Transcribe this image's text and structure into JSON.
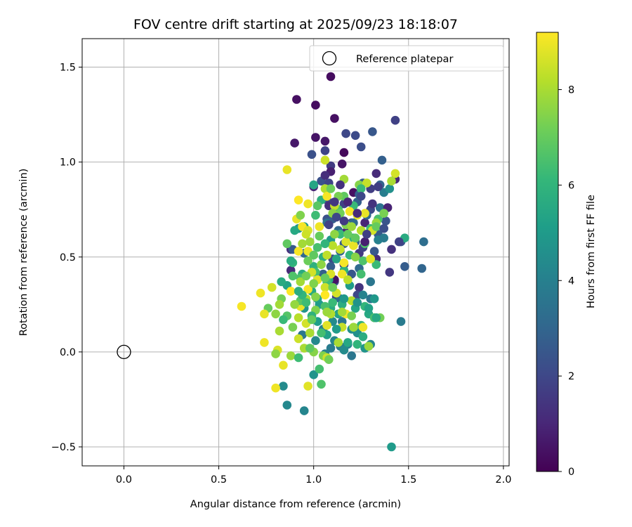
{
  "chart_data": {
    "type": "scatter",
    "title": "FOV centre drift starting at 2025/09/23 18:18:07",
    "xlabel": "Angular distance from reference (arcmin)",
    "ylabel": "Rotation from reference (arcmin)",
    "xlim": [
      -0.22,
      2.03
    ],
    "ylim": [
      -0.6,
      1.65
    ],
    "xticks": [
      0.0,
      0.5,
      1.0,
      1.5,
      2.0
    ],
    "xtick_labels": [
      "0.0",
      "0.5",
      "1.0",
      "1.5",
      "2.0"
    ],
    "yticks": [
      -0.5,
      0.0,
      0.5,
      1.0,
      1.5
    ],
    "ytick_labels": [
      "−0.5",
      "0.0",
      "0.5",
      "1.0",
      "1.5"
    ],
    "grid": true,
    "legend": {
      "position": "top-right",
      "entries": [
        "Reference platepar"
      ]
    },
    "reference_point": {
      "x": 0.0,
      "y": 0.0,
      "label": "Reference platepar"
    },
    "colorbar": {
      "label": "Hours from first FF file",
      "range": [
        0,
        9.2
      ],
      "ticks": [
        0,
        2,
        4,
        6,
        8
      ],
      "tick_labels": [
        "0",
        "2",
        "4",
        "6",
        "8"
      ],
      "colormap": "viridis"
    },
    "colormap_stops": [
      "#440154",
      "#482878",
      "#3e4989",
      "#31688e",
      "#26828e",
      "#1f9e89",
      "#35b779",
      "#6ece58",
      "#b5de2b",
      "#fde725"
    ],
    "points": [
      [
        1.09,
        1.45,
        0.3
      ],
      [
        0.91,
        1.33,
        0.4
      ],
      [
        1.01,
        1.3,
        0.3
      ],
      [
        1.11,
        1.23,
        0.4
      ],
      [
        1.43,
        1.22,
        1.8
      ],
      [
        1.17,
        1.15,
        2.0
      ],
      [
        1.22,
        1.14,
        2.1
      ],
      [
        1.31,
        1.16,
        2.5
      ],
      [
        1.01,
        1.13,
        0.5
      ],
      [
        1.06,
        1.11,
        0.6
      ],
      [
        0.9,
        1.1,
        0.6
      ],
      [
        1.25,
        1.08,
        2.2
      ],
      [
        1.06,
        1.06,
        1.9
      ],
      [
        1.16,
        1.05,
        0.2
      ],
      [
        0.99,
        1.04,
        2.3
      ],
      [
        1.36,
        1.01,
        2.8
      ],
      [
        1.15,
        0.99,
        0.5
      ],
      [
        1.09,
        0.98,
        1.6
      ],
      [
        1.09,
        0.95,
        0.8
      ],
      [
        1.33,
        0.94,
        1.1
      ],
      [
        1.43,
        0.91,
        1.0
      ],
      [
        1.04,
        0.9,
        2.3
      ],
      [
        1.26,
        0.89,
        2.7
      ],
      [
        1.35,
        0.88,
        2.9
      ],
      [
        1.21,
        0.84,
        0.4
      ],
      [
        1.37,
        0.84,
        3.9
      ],
      [
        1.07,
        0.8,
        2.2
      ],
      [
        1.16,
        0.78,
        1.8
      ],
      [
        1.3,
        0.75,
        2.0
      ],
      [
        1.35,
        0.76,
        3.5
      ],
      [
        1.39,
        0.76,
        0.9
      ],
      [
        1.38,
        0.69,
        2.4
      ],
      [
        1.2,
        0.68,
        2.1
      ],
      [
        1.27,
        0.68,
        1.0
      ],
      [
        0.95,
        0.66,
        5.0
      ],
      [
        0.92,
        0.65,
        4.8
      ],
      [
        1.17,
        0.63,
        0.9
      ],
      [
        1.41,
        0.54,
        1.3
      ],
      [
        1.46,
        0.58,
        2.3
      ],
      [
        1.48,
        0.45,
        2.7
      ],
      [
        1.57,
        0.44,
        3.0
      ],
      [
        1.58,
        0.58,
        3.3
      ],
      [
        1.48,
        0.6,
        5.6
      ],
      [
        1.46,
        0.16,
        3.8
      ],
      [
        1.32,
        0.18,
        3.2
      ],
      [
        1.4,
        0.42,
        1.5
      ],
      [
        1.24,
        0.34,
        1.4
      ],
      [
        0.88,
        0.43,
        1.1
      ],
      [
        0.88,
        0.54,
        1.2
      ],
      [
        1.1,
        0.49,
        2.0
      ],
      [
        1.16,
        0.46,
        1.3
      ],
      [
        1.24,
        0.52,
        1.5
      ],
      [
        1.11,
        0.37,
        2.4
      ],
      [
        1.23,
        0.3,
        2.0
      ],
      [
        1.12,
        0.29,
        1.7
      ],
      [
        1.3,
        0.28,
        3.5
      ],
      [
        1.33,
        0.49,
        1.1
      ],
      [
        1.2,
        0.41,
        2.5
      ],
      [
        1.05,
        0.41,
        2.8
      ],
      [
        1.11,
        0.38,
        0.5
      ],
      [
        1.0,
        0.87,
        1.0
      ],
      [
        1.32,
        0.53,
        2.5
      ],
      [
        1.22,
        0.58,
        3.0
      ],
      [
        0.89,
        0.54,
        2.6
      ],
      [
        0.95,
        0.52,
        3.1
      ],
      [
        1.26,
        0.55,
        1.8
      ],
      [
        1.08,
        0.89,
        1.9
      ],
      [
        1.08,
        0.77,
        1.2
      ],
      [
        1.3,
        0.86,
        1.7
      ],
      [
        1.4,
        0.86,
        4.6
      ],
      [
        1.3,
        0.37,
        3.6
      ],
      [
        1.09,
        0.45,
        2.7
      ],
      [
        1.34,
        0.62,
        2.6
      ],
      [
        1.24,
        0.83,
        2.8
      ],
      [
        1.07,
        0.7,
        2.3
      ],
      [
        1.23,
        0.79,
        2.8
      ],
      [
        1.16,
        0.57,
        2.6
      ],
      [
        1.21,
        0.68,
        3.2
      ],
      [
        1.13,
        0.64,
        3.1
      ],
      [
        1.1,
        0.7,
        2.7
      ],
      [
        1.24,
        0.44,
        3.2
      ],
      [
        1.07,
        0.68,
        3.4
      ],
      [
        1.14,
        0.53,
        3.0
      ],
      [
        1.15,
        0.16,
        3.6
      ],
      [
        1.28,
        0.72,
        3.1
      ],
      [
        1.34,
        0.59,
        4.0
      ],
      [
        1.26,
        0.3,
        4.1
      ],
      [
        1.14,
        0.28,
        3.3
      ],
      [
        0.94,
        0.09,
        3.6
      ],
      [
        0.86,
        -0.28,
        4.3
      ],
      [
        0.95,
        -0.31,
        4.2
      ],
      [
        0.84,
        -0.18,
        4.4
      ],
      [
        1.0,
        -0.12,
        4.7
      ],
      [
        1.41,
        -0.5,
        5.0
      ],
      [
        1.09,
        0.02,
        3.8
      ],
      [
        1.11,
        0.06,
        4.2
      ],
      [
        1.14,
        0.03,
        3.9
      ],
      [
        1.2,
        -0.02,
        3.6
      ],
      [
        1.18,
        0.04,
        4.0
      ],
      [
        1.05,
        0.12,
        4.1
      ],
      [
        1.23,
        0.1,
        4.6
      ],
      [
        1.01,
        0.06,
        4.3
      ],
      [
        1.1,
        0.16,
        4.4
      ],
      [
        1.3,
        0.04,
        4.2
      ],
      [
        1.27,
        0.02,
        4.7
      ],
      [
        1.2,
        0.12,
        4.5
      ],
      [
        1.06,
        -0.01,
        4.0
      ],
      [
        1.16,
        0.01,
        4.4
      ],
      [
        1.02,
        0.16,
        5.1
      ],
      [
        1.13,
        0.2,
        5.3
      ],
      [
        1.07,
        0.09,
        5.2
      ],
      [
        1.03,
        0.25,
        5.0
      ],
      [
        1.22,
        0.23,
        5.4
      ],
      [
        1.29,
        0.2,
        5.5
      ],
      [
        0.95,
        0.23,
        4.8
      ],
      [
        1.09,
        0.23,
        5.6
      ],
      [
        1.15,
        0.25,
        5.7
      ],
      [
        1.02,
        0.28,
        5.2
      ],
      [
        1.25,
        0.14,
        5.9
      ],
      [
        1.32,
        0.18,
        6.5
      ],
      [
        1.29,
        0.03,
        6.7
      ],
      [
        1.27,
        0.24,
        6.1
      ],
      [
        0.99,
        0.32,
        5.6
      ],
      [
        1.08,
        0.38,
        5.5
      ],
      [
        1.19,
        0.35,
        5.0
      ],
      [
        1.0,
        0.45,
        5.9
      ],
      [
        1.05,
        0.5,
        5.8
      ],
      [
        1.12,
        0.49,
        5.4
      ],
      [
        0.89,
        0.47,
        6.0
      ],
      [
        0.94,
        0.41,
        5.6
      ],
      [
        0.86,
        0.35,
        5.3
      ],
      [
        0.93,
        0.39,
        6.5
      ],
      [
        1.01,
        0.42,
        6.4
      ],
      [
        1.07,
        0.37,
        6.3
      ],
      [
        1.16,
        0.43,
        5.9
      ],
      [
        1.19,
        0.51,
        6.1
      ],
      [
        1.26,
        0.48,
        6.6
      ],
      [
        1.33,
        0.46,
        6.2
      ],
      [
        1.27,
        0.57,
        6.6
      ],
      [
        1.02,
        0.55,
        6.5
      ],
      [
        0.9,
        0.64,
        5.5
      ],
      [
        1.09,
        0.59,
        5.0
      ],
      [
        1.14,
        0.62,
        6.2
      ],
      [
        1.21,
        0.6,
        5.8
      ],
      [
        1.3,
        0.65,
        6.3
      ],
      [
        1.34,
        0.7,
        6.5
      ],
      [
        1.01,
        0.72,
        6.3
      ],
      [
        1.13,
        0.75,
        6.5
      ],
      [
        1.21,
        0.77,
        6.2
      ],
      [
        1.04,
        0.8,
        5.8
      ],
      [
        1.16,
        0.82,
        6.9
      ],
      [
        1.24,
        0.88,
        7.5
      ],
      [
        1.28,
        0.89,
        8.4
      ],
      [
        1.16,
        0.91,
        7.9
      ],
      [
        1.06,
        0.86,
        8.1
      ],
      [
        1.06,
        1.01,
        8.5
      ],
      [
        0.86,
        0.96,
        8.9
      ],
      [
        1.43,
        0.94,
        8.6
      ],
      [
        1.41,
        0.9,
        8.0
      ],
      [
        1.0,
        0.88,
        5.4
      ],
      [
        0.92,
        0.8,
        9.2
      ],
      [
        1.07,
        0.82,
        9.1
      ],
      [
        0.97,
        0.78,
        9.0
      ],
      [
        1.11,
        0.77,
        8.4
      ],
      [
        1.19,
        0.74,
        9.1
      ],
      [
        1.23,
        0.72,
        8.8
      ],
      [
        1.27,
        0.73,
        8.9
      ],
      [
        1.17,
        0.67,
        7.4
      ],
      [
        1.33,
        0.68,
        7.8
      ],
      [
        1.25,
        0.64,
        8.2
      ],
      [
        1.31,
        0.64,
        8.6
      ],
      [
        1.03,
        0.66,
        9.0
      ],
      [
        0.94,
        0.66,
        9.1
      ],
      [
        0.97,
        0.64,
        8.7
      ],
      [
        0.91,
        0.7,
        8.9
      ],
      [
        0.98,
        0.58,
        7.8
      ],
      [
        0.96,
        0.62,
        8.5
      ],
      [
        1.1,
        0.56,
        8.2
      ],
      [
        1.17,
        0.58,
        8.7
      ],
      [
        1.21,
        0.56,
        8.9
      ],
      [
        1.14,
        0.54,
        8.4
      ],
      [
        1.22,
        0.5,
        7.5
      ],
      [
        1.3,
        0.49,
        8.8
      ],
      [
        0.92,
        0.53,
        9.1
      ],
      [
        0.97,
        0.53,
        9.0
      ],
      [
        1.07,
        0.51,
        8.3
      ],
      [
        1.16,
        0.47,
        9.1
      ],
      [
        1.04,
        0.46,
        7.6
      ],
      [
        0.99,
        0.42,
        8.6
      ],
      [
        0.93,
        0.37,
        7.9
      ],
      [
        1.09,
        0.41,
        8.7
      ],
      [
        1.15,
        0.41,
        9.0
      ],
      [
        1.18,
        0.38,
        8.3
      ],
      [
        1.02,
        0.38,
        8.8
      ],
      [
        1.06,
        0.34,
        8.5
      ],
      [
        0.97,
        0.33,
        9.1
      ],
      [
        0.88,
        0.32,
        9.2
      ],
      [
        0.83,
        0.28,
        7.2
      ],
      [
        0.96,
        0.28,
        8.0
      ],
      [
        1.12,
        0.31,
        8.6
      ],
      [
        1.06,
        0.3,
        9.2
      ],
      [
        1.2,
        0.27,
        8.2
      ],
      [
        1.01,
        0.22,
        7.4
      ],
      [
        0.93,
        0.24,
        8.9
      ],
      [
        0.82,
        0.25,
        7.9
      ],
      [
        0.76,
        0.23,
        7.0
      ],
      [
        0.8,
        0.2,
        7.6
      ],
      [
        0.74,
        0.2,
        8.9
      ],
      [
        0.62,
        0.24,
        9.1
      ],
      [
        0.72,
        0.31,
        9.0
      ],
      [
        0.78,
        0.34,
        8.6
      ],
      [
        0.86,
        0.19,
        6.7
      ],
      [
        0.89,
        0.13,
        7.3
      ],
      [
        0.92,
        0.18,
        8.2
      ],
      [
        0.96,
        0.15,
        8.6
      ],
      [
        1.07,
        0.14,
        8.8
      ],
      [
        1.15,
        0.13,
        8.4
      ],
      [
        1.21,
        0.13,
        7.8
      ],
      [
        1.26,
        0.13,
        9.0
      ],
      [
        1.09,
        0.2,
        8.1
      ],
      [
        1.17,
        0.2,
        9.1
      ],
      [
        0.98,
        0.1,
        8.0
      ],
      [
        0.92,
        0.07,
        8.5
      ],
      [
        0.82,
        0.11,
        8.0
      ],
      [
        0.74,
        0.05,
        9.0
      ],
      [
        0.81,
        0.01,
        8.7
      ],
      [
        0.8,
        -0.01,
        7.6
      ],
      [
        0.88,
        -0.02,
        7.8
      ],
      [
        1.0,
        0.0,
        7.5
      ],
      [
        1.05,
        -0.02,
        7.4
      ],
      [
        1.07,
        -0.03,
        8.5
      ],
      [
        0.95,
        0.02,
        8.0
      ],
      [
        1.13,
        0.05,
        8.0
      ],
      [
        1.29,
        0.03,
        7.8
      ],
      [
        0.84,
        -0.07,
        8.9
      ],
      [
        0.8,
        -0.19,
        9.0
      ],
      [
        0.97,
        -0.18,
        8.8
      ],
      [
        1.04,
        -0.17,
        6.6
      ],
      [
        0.92,
        -0.03,
        6.3
      ],
      [
        1.03,
        -0.09,
        6.4
      ],
      [
        0.84,
        0.17,
        6.2
      ],
      [
        1.04,
        0.1,
        6.4
      ],
      [
        1.23,
        0.04,
        6.0
      ],
      [
        1.26,
        0.08,
        5.7
      ],
      [
        1.35,
        0.18,
        7.2
      ],
      [
        0.93,
        0.27,
        6.8
      ],
      [
        0.94,
        0.3,
        6.0
      ],
      [
        0.96,
        0.26,
        6.3
      ],
      [
        0.92,
        0.32,
        5.7
      ],
      [
        1.06,
        0.24,
        6.5
      ],
      [
        1.1,
        0.26,
        6.2
      ],
      [
        0.99,
        0.19,
        5.9
      ],
      [
        0.89,
        0.4,
        6.6
      ],
      [
        1.06,
        0.57,
        6.0
      ],
      [
        0.88,
        0.48,
        5.7
      ],
      [
        0.86,
        0.57,
        6.9
      ],
      [
        0.93,
        0.72,
        7.4
      ],
      [
        1.03,
        0.61,
        7.0
      ],
      [
        1.11,
        0.62,
        7.6
      ],
      [
        1.18,
        0.62,
        7.0
      ],
      [
        1.14,
        0.73,
        7.2
      ],
      [
        1.13,
        0.82,
        7.3
      ],
      [
        1.2,
        0.66,
        7.8
      ],
      [
        1.33,
        0.66,
        7.0
      ],
      [
        1.37,
        0.73,
        7.3
      ],
      [
        1.09,
        0.86,
        7.1
      ],
      [
        1.25,
        0.86,
        6.2
      ],
      [
        1.1,
        0.73,
        7.6
      ],
      [
        1.02,
        0.77,
        6.8
      ],
      [
        1.22,
        0.6,
        6.9
      ],
      [
        1.0,
        0.51,
        6.9
      ],
      [
        1.06,
        0.39,
        7.0
      ],
      [
        1.1,
        0.34,
        7.1
      ],
      [
        1.01,
        0.29,
        7.5
      ],
      [
        1.07,
        0.21,
        7.8
      ],
      [
        1.15,
        0.21,
        7.9
      ],
      [
        1.2,
        0.19,
        7.3
      ],
      [
        0.98,
        0.02,
        6.9
      ],
      [
        1.08,
        -0.04,
        7.2
      ],
      [
        0.99,
        0.17,
        7.0
      ],
      [
        0.96,
        0.4,
        7.2
      ],
      [
        0.97,
        0.48,
        7.1
      ],
      [
        0.94,
        0.57,
        7.9
      ],
      [
        1.0,
        0.36,
        7.4
      ],
      [
        0.9,
        0.25,
        7.7
      ],
      [
        0.83,
        0.37,
        5.6
      ],
      [
        1.25,
        0.41,
        6.4
      ],
      [
        1.33,
        0.18,
        5.5
      ],
      [
        1.18,
        0.05,
        5.5
      ],
      [
        1.29,
        0.23,
        5.3
      ],
      [
        1.12,
        0.12,
        5.0
      ],
      [
        1.16,
        0.28,
        4.9
      ],
      [
        1.23,
        0.26,
        4.7
      ],
      [
        1.32,
        0.28,
        4.9
      ],
      [
        1.37,
        0.6,
        3.8
      ],
      [
        1.34,
        0.87,
        1.7
      ],
      [
        1.45,
        0.58,
        1.8
      ],
      [
        1.06,
        0.93,
        1.2
      ],
      [
        1.14,
        0.88,
        1.3
      ],
      [
        1.18,
        0.79,
        1.0
      ],
      [
        1.27,
        0.58,
        0.8
      ],
      [
        1.11,
        0.79,
        1.5
      ],
      [
        1.12,
        0.71,
        2.0
      ],
      [
        1.23,
        0.73,
        1.1
      ],
      [
        1.31,
        0.78,
        1.4
      ],
      [
        1.08,
        0.67,
        1.8
      ],
      [
        1.16,
        0.69,
        1.6
      ],
      [
        1.28,
        0.62,
        1.7
      ],
      [
        1.37,
        0.65,
        2.2
      ],
      [
        1.25,
        0.82,
        2.0
      ]
    ]
  }
}
